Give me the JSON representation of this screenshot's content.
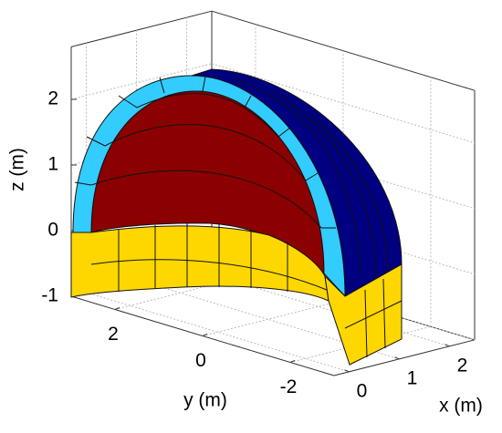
{
  "chart_data": {
    "type": "surface3d",
    "xlabel": "x (m)",
    "ylabel": "y (m)",
    "zlabel": "z (m)",
    "xlim": [
      -0.3,
      2.5
    ],
    "ylim": [
      -3,
      3
    ],
    "zlim": [
      -1,
      2.8
    ],
    "xticks": [
      0,
      1,
      2
    ],
    "yticks": [
      -2,
      0,
      2
    ],
    "zticks": [
      -1,
      0,
      1,
      2
    ],
    "grid": true
  }
}
